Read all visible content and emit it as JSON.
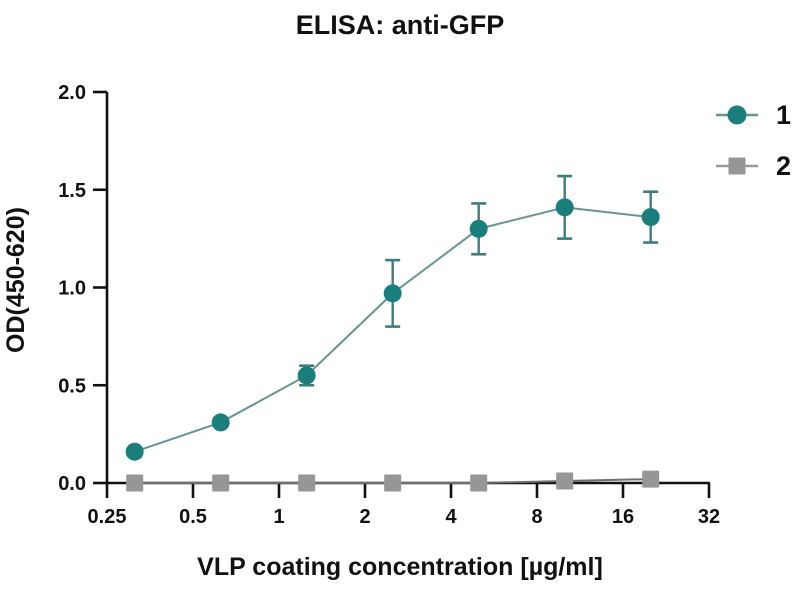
{
  "title": "ELISA: anti-GFP",
  "colors": {
    "axis": "#111111",
    "text": "#111111",
    "series1_marker": "#1A7F7C",
    "series1_line": "#66948F",
    "series1_error": "#3E7B79",
    "series2_marker": "#969696",
    "series2_line": "#6E6E6E",
    "legend2_line": "#999999",
    "background": "#FFFFFF"
  },
  "legend": {
    "items": [
      {
        "label": "1",
        "marker": "circle"
      },
      {
        "label": "2",
        "marker": "square"
      }
    ]
  },
  "chart_data": {
    "type": "line",
    "title": "ELISA: anti-GFP",
    "xlabel": "VLP coating concentration [µg/ml]",
    "ylabel": "OD(450-620)",
    "x_scale": "log2",
    "xlim": [
      0.25,
      32
    ],
    "ylim": [
      0.0,
      2.0
    ],
    "x_ticks": [
      0.25,
      0.5,
      1,
      2,
      4,
      8,
      16,
      32
    ],
    "x_tick_labels": [
      "0.25",
      "0.5",
      "1",
      "2",
      "4",
      "8",
      "16",
      "32"
    ],
    "y_ticks": [
      0.0,
      0.5,
      1.0,
      1.5,
      2.0
    ],
    "y_tick_labels": [
      "0.0",
      "0.5",
      "1.0",
      "1.5",
      "2.0"
    ],
    "grid": false,
    "legend_position": "right",
    "x": [
      0.3125,
      0.625,
      1.25,
      2.5,
      5,
      10,
      20
    ],
    "series": [
      {
        "name": "1",
        "marker": "circle",
        "color": "#1A7F7C",
        "line_color": "#66948F",
        "error_color": "#3E7B79",
        "values": [
          0.16,
          0.31,
          0.55,
          0.97,
          1.3,
          1.41,
          1.36
        ],
        "errors": [
          0.02,
          0.02,
          0.05,
          0.17,
          0.13,
          0.16,
          0.13
        ]
      },
      {
        "name": "2",
        "marker": "square",
        "color": "#969696",
        "line_color": "#6E6E6E",
        "error_color": "#6E6E6E",
        "values": [
          0.0,
          0.0,
          0.0,
          0.0,
          0.0,
          0.01,
          0.02
        ],
        "errors": [
          0,
          0,
          0,
          0,
          0,
          0,
          0
        ]
      }
    ]
  }
}
